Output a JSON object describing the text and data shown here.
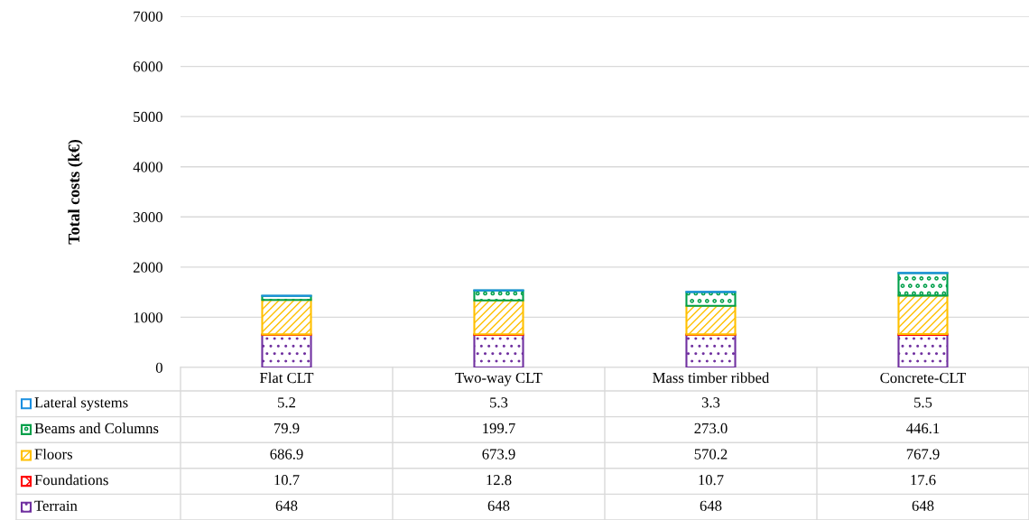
{
  "chart_data": {
    "type": "bar",
    "stacked": true,
    "ylabel": "Total costs (k€)",
    "categories": [
      "Flat CLT",
      "Two-way CLT",
      "Mass timber ribbed",
      "Concrete-CLT"
    ],
    "series": [
      {
        "name": "Terrain",
        "color": "#7030a0",
        "values": [
          648,
          648,
          648,
          648
        ],
        "value_labels": [
          "648",
          "648",
          "648",
          "648"
        ]
      },
      {
        "name": "Foundations",
        "color": "#ff0000",
        "values": [
          10.7,
          12.8,
          10.7,
          17.6
        ],
        "value_labels": [
          "10.7",
          "12.8",
          "10.7",
          "17.6"
        ]
      },
      {
        "name": "Floors",
        "color": "#ffc000",
        "values": [
          686.9,
          673.9,
          570.2,
          767.9
        ],
        "value_labels": [
          "686.9",
          "673.9",
          "570.2",
          "767.9"
        ]
      },
      {
        "name": "Beams and Columns",
        "color": "#00a04a",
        "values": [
          79.9,
          199.7,
          273.0,
          446.1
        ],
        "value_labels": [
          "79.9",
          "199.7",
          "273.0",
          "446.1"
        ]
      },
      {
        "name": "Lateral systems",
        "color": "#1a8fe0",
        "values": [
          5.2,
          5.3,
          3.3,
          5.5
        ],
        "value_labels": [
          "5.2",
          "5.3",
          "3.3",
          "5.5"
        ]
      }
    ],
    "ylim": [
      0,
      7000
    ],
    "yticks": [
      0,
      1000,
      2000,
      3000,
      4000,
      5000,
      6000,
      7000
    ],
    "grid": "y",
    "legend": "bottom left"
  }
}
